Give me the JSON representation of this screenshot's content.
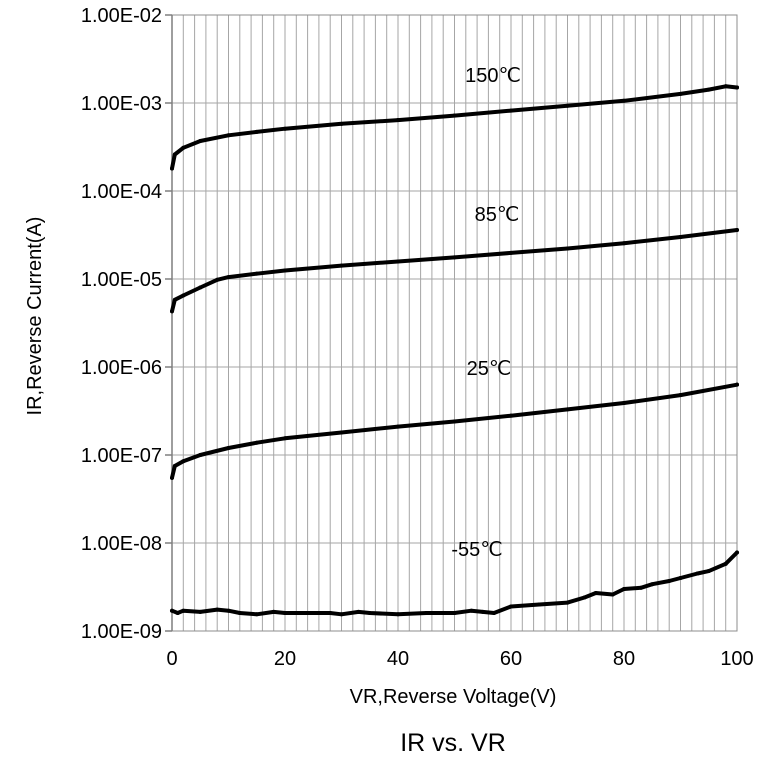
{
  "chart_data": {
    "type": "line",
    "title": "IR vs. VR",
    "xlabel": "VR,Reverse Voltage(V)",
    "ylabel": "IR,Reverse Current(A)",
    "xlim": [
      0,
      100
    ],
    "ylim": [
      1e-09,
      0.01
    ],
    "yscale": "log",
    "grid": true,
    "legend": "none (series labeled inline)",
    "x_ticks": [
      "0",
      "20",
      "40",
      "60",
      "80",
      "100"
    ],
    "y_ticks": [
      "1.00E-09",
      "1.00E-08",
      "1.00E-07",
      "1.00E-06",
      "1.00E-05",
      "1.00E-04",
      "1.00E-03",
      "1.00E-02"
    ],
    "line_color": "#000000",
    "series": [
      {
        "name": "150℃",
        "x": [
          0,
          0.5,
          2,
          5,
          10,
          15,
          20,
          30,
          40,
          50,
          60,
          70,
          80,
          90,
          95,
          98,
          100
        ],
        "y": [
          0.00018,
          0.00026,
          0.00031,
          0.00037,
          0.00043,
          0.00047,
          0.00051,
          0.00058,
          0.00064,
          0.00072,
          0.00082,
          0.00093,
          0.00106,
          0.00127,
          0.00142,
          0.00155,
          0.0015
        ]
      },
      {
        "name": "85℃",
        "x": [
          0,
          0.5,
          2,
          5,
          8,
          10,
          15,
          20,
          30,
          40,
          50,
          60,
          70,
          80,
          90,
          100
        ],
        "y": [
          4.3e-06,
          5.8e-06,
          6.5e-06,
          8e-06,
          9.8e-06,
          1.05e-05,
          1.15e-05,
          1.25e-05,
          1.42e-05,
          1.58e-05,
          1.76e-05,
          1.98e-05,
          2.22e-05,
          2.55e-05,
          3e-05,
          3.6e-05
        ]
      },
      {
        "name": "25℃",
        "x": [
          0,
          0.5,
          2,
          5,
          10,
          15,
          20,
          30,
          40,
          50,
          60,
          70,
          80,
          90,
          100
        ],
        "y": [
          5.5e-08,
          7.5e-08,
          8.5e-08,
          1e-07,
          1.2e-07,
          1.38e-07,
          1.55e-07,
          1.8e-07,
          2.1e-07,
          2.4e-07,
          2.8e-07,
          3.3e-07,
          3.9e-07,
          4.8e-07,
          6.3e-07
        ]
      },
      {
        "name": "-55℃",
        "x": [
          0,
          1,
          2,
          5,
          8,
          10,
          12,
          15,
          18,
          20,
          25,
          28,
          30,
          33,
          35,
          40,
          45,
          50,
          53,
          55,
          57,
          60,
          65,
          70,
          73,
          75,
          78,
          80,
          83,
          85,
          88,
          90,
          93,
          95,
          98,
          100
        ],
        "y": [
          1.7e-09,
          1.6e-09,
          1.7e-09,
          1.65e-09,
          1.75e-09,
          1.7e-09,
          1.6e-09,
          1.55e-09,
          1.65e-09,
          1.6e-09,
          1.6e-09,
          1.6e-09,
          1.55e-09,
          1.65e-09,
          1.6e-09,
          1.55e-09,
          1.6e-09,
          1.6e-09,
          1.7e-09,
          1.65e-09,
          1.6e-09,
          1.9e-09,
          2e-09,
          2.1e-09,
          2.4e-09,
          2.7e-09,
          2.6e-09,
          3e-09,
          3.1e-09,
          3.4e-09,
          3.7e-09,
          4e-09,
          4.5e-09,
          4.8e-09,
          5.8e-09,
          7.8e-09
        ]
      }
    ]
  }
}
